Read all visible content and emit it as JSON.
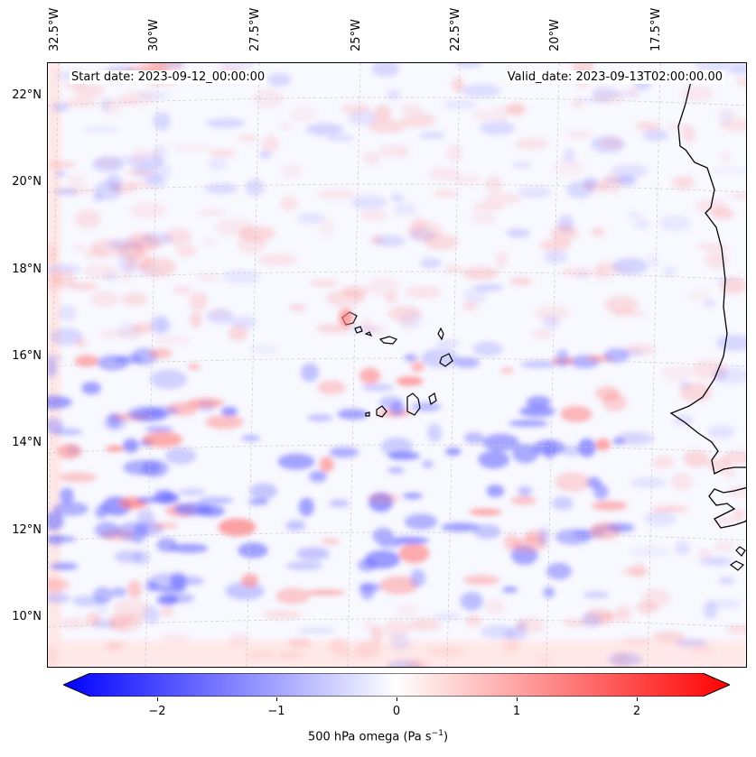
{
  "map": {
    "lon_labels": [
      "32.5°W",
      "30°W",
      "27.5°W",
      "25°W",
      "22.5°W",
      "20°W",
      "17.5°W"
    ],
    "lat_labels": [
      "22°N",
      "20°N",
      "18°N",
      "16°N",
      "14°N",
      "12°N",
      "10°N"
    ],
    "start_date": "Start date: 2023-09-12_00:00:00",
    "valid_date": "Valid_date: 2023-09-13T02:00:00.00",
    "coastline_color": "#000000",
    "gridline_style": "dashed light gray"
  },
  "colorbar": {
    "ticks": [
      "−2",
      "−1",
      "0",
      "1",
      "2"
    ],
    "tick_values": [
      -2,
      -1,
      0,
      1,
      2
    ],
    "range": [
      -2.6,
      2.6
    ],
    "label": "500 hPa omega (Pa s",
    "label_sup": "−1",
    "label_end": ")",
    "colors": {
      "min": "#0000ff",
      "mid": "#ffffff",
      "max": "#ff0000"
    }
  }
}
